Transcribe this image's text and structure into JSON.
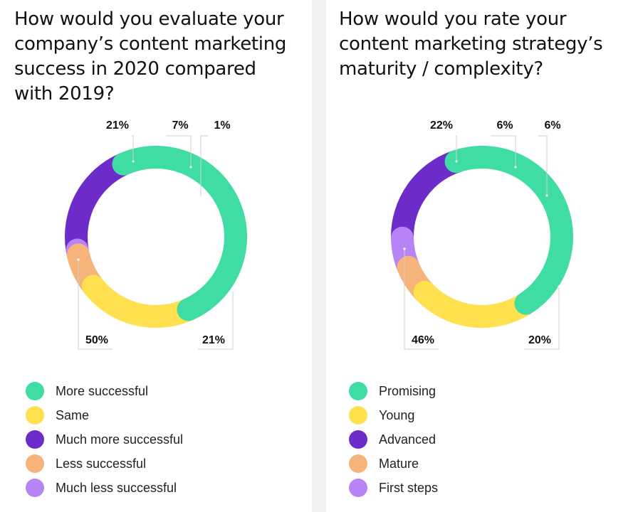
{
  "colors": {
    "green": "#3fdca4",
    "yellow": "#ffe04e",
    "purple": "#6d2bc9",
    "orange": "#f6b47a",
    "lavender": "#b784f5"
  },
  "chart_data": [
    {
      "type": "pie",
      "variant": "donut",
      "title": "How would you evaluate your company’s content marketing success in 2020 compared with 2019?",
      "slices": [
        {
          "label": "More successful",
          "value": 50,
          "value_label": "50%",
          "color": "#3fdca4"
        },
        {
          "label": "Same",
          "value": 21,
          "value_label": "21%",
          "color": "#ffe04e"
        },
        {
          "label": "Less successful",
          "value": 7,
          "value_label": "7%",
          "color": "#f6b47a"
        },
        {
          "label": "Much less successful",
          "value": 1,
          "value_label": "1%",
          "color": "#b784f5"
        },
        {
          "label": "Much more successful",
          "value": 21,
          "value_label": "21%",
          "color": "#6d2bc9"
        }
      ],
      "legend": [
        {
          "label": "More successful",
          "color": "#3fdca4"
        },
        {
          "label": "Same",
          "color": "#ffe04e"
        },
        {
          "label": "Much more successful",
          "color": "#6d2bc9"
        },
        {
          "label": "Less successful",
          "color": "#f6b47a"
        },
        {
          "label": "Much less successful",
          "color": "#b784f5"
        }
      ],
      "legend_position": "bottom"
    },
    {
      "type": "pie",
      "variant": "donut",
      "title": "How would you rate your content marketing strategy’s maturity / complexity?",
      "slices": [
        {
          "label": "Promising",
          "value": 46,
          "value_label": "46%",
          "color": "#3fdca4"
        },
        {
          "label": "Young",
          "value": 22,
          "value_label": "22%",
          "color": "#ffe04e"
        },
        {
          "label": "Mature",
          "value": 6,
          "value_label": "6%",
          "color": "#f6b47a"
        },
        {
          "label": "First steps",
          "value": 6,
          "value_label": "6%",
          "color": "#b784f5"
        },
        {
          "label": "Advanced",
          "value": 20,
          "value_label": "20%",
          "color": "#6d2bc9"
        }
      ],
      "legend": [
        {
          "label": "Promising",
          "color": "#3fdca4"
        },
        {
          "label": "Young",
          "color": "#ffe04e"
        },
        {
          "label": "Advanced",
          "color": "#6d2bc9"
        },
        {
          "label": "Mature",
          "color": "#f6b47a"
        },
        {
          "label": "First steps",
          "color": "#b784f5"
        }
      ],
      "legend_position": "bottom"
    }
  ]
}
